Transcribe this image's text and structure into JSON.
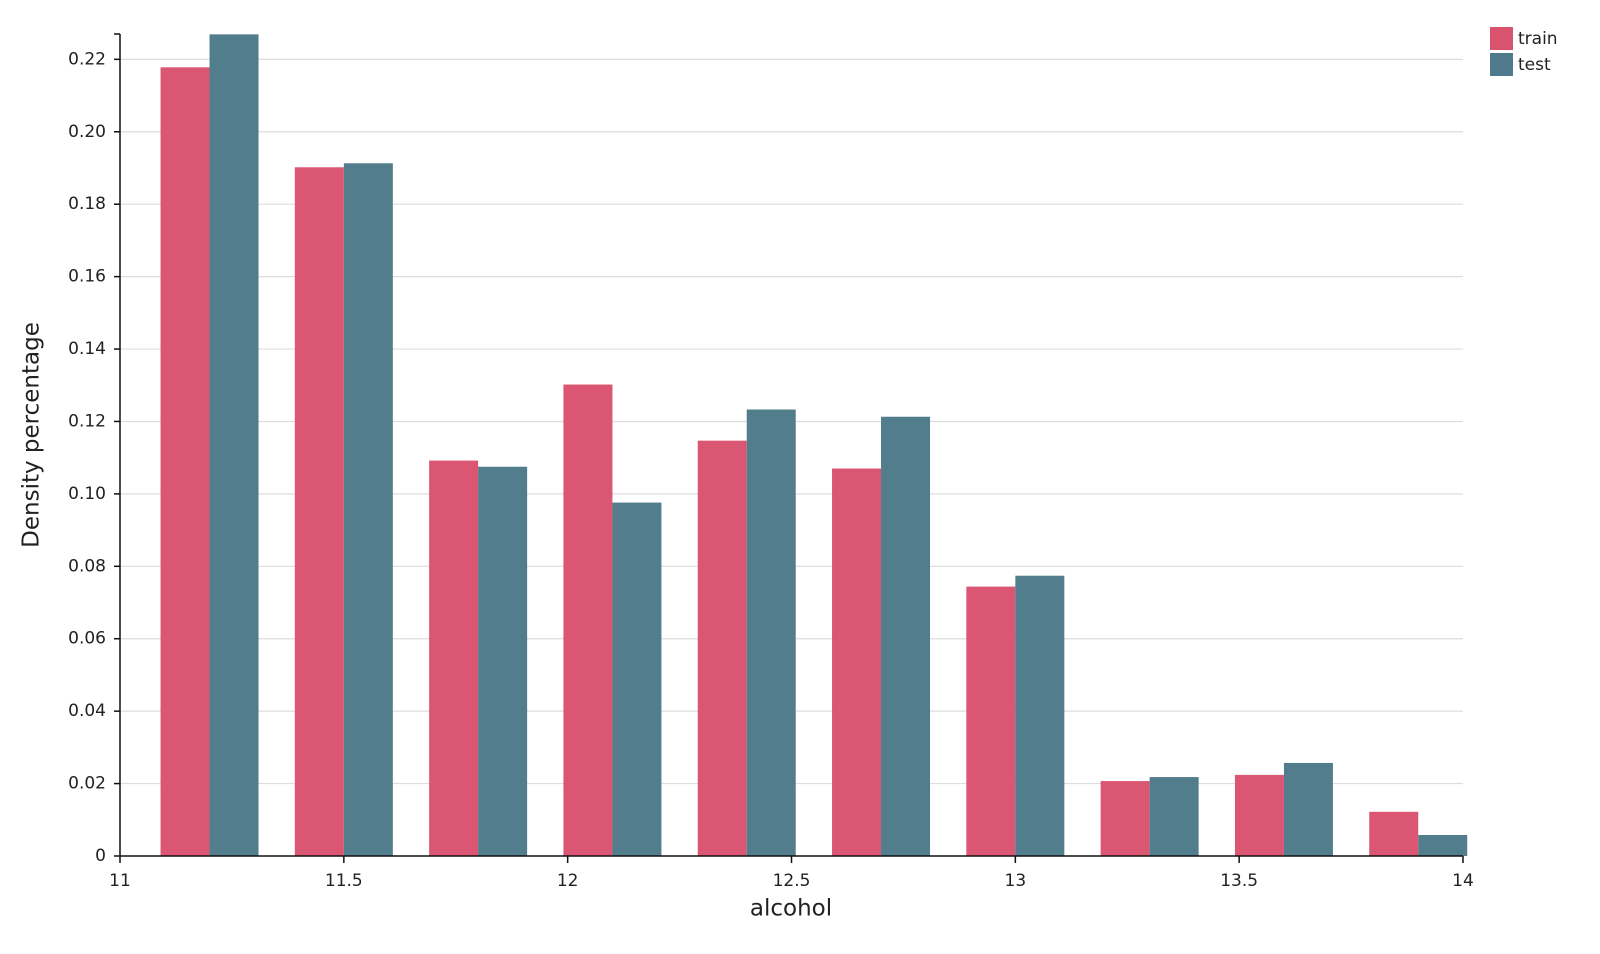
{
  "chart_data": {
    "type": "grouped_bar",
    "x_label": "alcohol",
    "y_label": "Density percentage",
    "x": [
      11.2,
      11.5,
      11.8,
      12.1,
      12.4,
      12.7,
      13.0,
      13.3,
      13.6,
      13.9
    ],
    "series": [
      {
        "name": "train",
        "color": "#d9536f",
        "values": [
          0.2178,
          0.1902,
          0.1092,
          0.1302,
          0.1147,
          0.107,
          0.0744,
          0.0207,
          0.0224,
          0.0122
        ]
      },
      {
        "name": "test",
        "color": "#4e7a8b",
        "values": [
          0.2269,
          0.1913,
          0.1075,
          0.0976,
          0.1233,
          0.1213,
          0.0774,
          0.0218,
          0.0257,
          0.0058
        ]
      }
    ],
    "xlim": [
      11,
      14
    ],
    "xticks": [
      11,
      11.5,
      12,
      12.5,
      13,
      13.5,
      14
    ],
    "ylim": [
      0,
      0.227
    ],
    "yticks": [
      0,
      0.02,
      0.04,
      0.06,
      0.08,
      {
        "value": 0.1,
        "label": "0.10"
      },
      0.12,
      0.14,
      0.16,
      0.18,
      {
        "value": 0.2,
        "label": "0.20"
      },
      0.22
    ],
    "grid": true,
    "legend": "top-right"
  }
}
